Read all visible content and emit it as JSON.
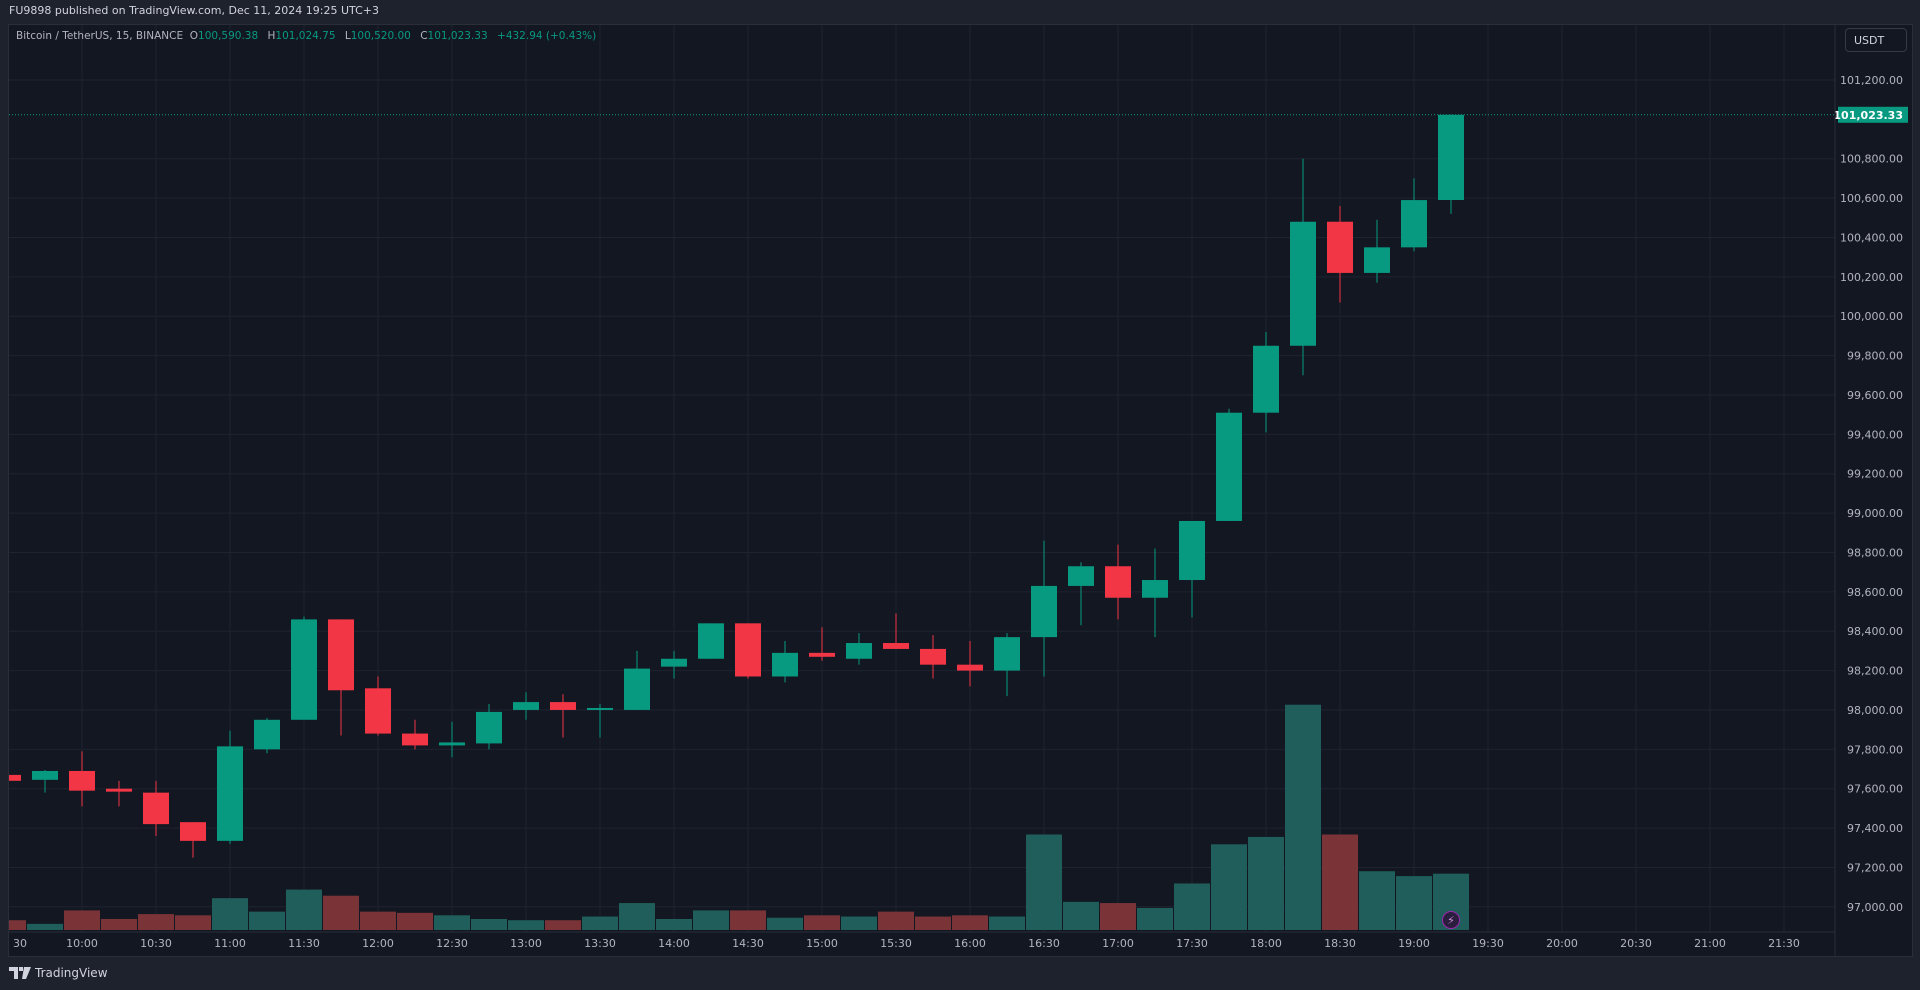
{
  "publish_line": "FU9898 published on TradingView.com, Dec 11, 2024 19:25 UTC+3",
  "legend": {
    "symbol": "Bitcoin / TetherUS, 15, BINANCE",
    "o_label": "O",
    "o": "100,590.38",
    "h_label": "H",
    "h": "101,024.75",
    "l_label": "L",
    "l": "100,520.00",
    "c_label": "C",
    "c": "101,023.33",
    "change": "+432.94 (+0.43%)"
  },
  "currency_button": "USDT",
  "footer_brand": "TradingView",
  "colors": {
    "up": "#089981",
    "down": "#f23645",
    "vol_up": "#1f5e5a",
    "vol_down": "#7a3337",
    "background": "#131722",
    "grid": "#1f2330"
  },
  "icons": {
    "lightning": "lightning-icon",
    "logo": "tradingview-logo"
  },
  "chart_data": {
    "type": "candlestick",
    "interval": "15",
    "last_price": 101023.33,
    "last_price_label": "101,023.33",
    "ylim": [
      96900,
      101400
    ],
    "price_ticks": [
      "101,200.00",
      "100,800.00",
      "100,600.00",
      "100,400.00",
      "100,200.00",
      "100,000.00",
      "99,800.00",
      "99,600.00",
      "99,400.00",
      "99,200.00",
      "99,000.00",
      "98,800.00",
      "98,600.00",
      "98,400.00",
      "98,200.00",
      "98,000.00",
      "97,800.00",
      "97,600.00",
      "97,400.00",
      "97,200.00",
      "97,000.00"
    ],
    "time_ticks": [
      "30",
      "10:00",
      "10:30",
      "11:00",
      "11:30",
      "12:00",
      "12:30",
      "13:00",
      "13:30",
      "14:00",
      "14:30",
      "15:00",
      "15:30",
      "16:00",
      "16:30",
      "17:00",
      "17:30",
      "18:00",
      "18:30",
      "19:00",
      "19:30",
      "20:00",
      "20:30",
      "21:00",
      "21:30"
    ],
    "grid": true,
    "candles": [
      {
        "t": "09:30",
        "o": 97670,
        "h": 97675,
        "l": 97640,
        "c": 97640,
        "v": 8
      },
      {
        "t": "09:45",
        "o": 97645,
        "h": 97695,
        "l": 97580,
        "c": 97690,
        "v": 5
      },
      {
        "t": "10:00",
        "o": 97690,
        "h": 97790,
        "l": 97510,
        "c": 97590,
        "v": 16
      },
      {
        "t": "10:15",
        "o": 97600,
        "h": 97640,
        "l": 97510,
        "c": 97585,
        "v": 9
      },
      {
        "t": "10:30",
        "o": 97580,
        "h": 97640,
        "l": 97360,
        "c": 97420,
        "v": 13
      },
      {
        "t": "10:45",
        "o": 97430,
        "h": 97430,
        "l": 97250,
        "c": 97335,
        "v": 12
      },
      {
        "t": "11:00",
        "o": 97335,
        "h": 97895,
        "l": 97320,
        "c": 97815,
        "v": 26
      },
      {
        "t": "11:15",
        "o": 97800,
        "h": 97960,
        "l": 97780,
        "c": 97950,
        "v": 15
      },
      {
        "t": "11:30",
        "o": 97950,
        "h": 98475,
        "l": 97950,
        "c": 98460,
        "v": 33
      },
      {
        "t": "11:45",
        "o": 98460,
        "h": 98460,
        "l": 97870,
        "c": 98100,
        "v": 28
      },
      {
        "t": "12:00",
        "o": 98110,
        "h": 98170,
        "l": 97870,
        "c": 97880,
        "v": 15
      },
      {
        "t": "12:15",
        "o": 97880,
        "h": 97950,
        "l": 97800,
        "c": 97820,
        "v": 14
      },
      {
        "t": "12:30",
        "o": 97820,
        "h": 97940,
        "l": 97760,
        "c": 97835,
        "v": 12
      },
      {
        "t": "12:45",
        "o": 97830,
        "h": 98030,
        "l": 97800,
        "c": 97990,
        "v": 9
      },
      {
        "t": "13:00",
        "o": 98000,
        "h": 98090,
        "l": 97950,
        "c": 98040,
        "v": 8
      },
      {
        "t": "13:15",
        "o": 98040,
        "h": 98080,
        "l": 97860,
        "c": 98000,
        "v": 8
      },
      {
        "t": "13:30",
        "o": 98000,
        "h": 98030,
        "l": 97860,
        "c": 98010,
        "v": 11
      },
      {
        "t": "13:45",
        "o": 98000,
        "h": 98300,
        "l": 98000,
        "c": 98210,
        "v": 22
      },
      {
        "t": "14:00",
        "o": 98220,
        "h": 98300,
        "l": 98160,
        "c": 98260,
        "v": 9
      },
      {
        "t": "14:15",
        "o": 98260,
        "h": 98440,
        "l": 98260,
        "c": 98440,
        "v": 16
      },
      {
        "t": "14:30",
        "o": 98440,
        "h": 98440,
        "l": 98160,
        "c": 98170,
        "v": 16
      },
      {
        "t": "14:45",
        "o": 98170,
        "h": 98350,
        "l": 98140,
        "c": 98290,
        "v": 10
      },
      {
        "t": "15:00",
        "o": 98290,
        "h": 98420,
        "l": 98250,
        "c": 98270,
        "v": 12
      },
      {
        "t": "15:15",
        "o": 98260,
        "h": 98390,
        "l": 98230,
        "c": 98340,
        "v": 11
      },
      {
        "t": "15:30",
        "o": 98340,
        "h": 98490,
        "l": 98310,
        "c": 98310,
        "v": 15
      },
      {
        "t": "15:45",
        "o": 98310,
        "h": 98380,
        "l": 98160,
        "c": 98230,
        "v": 11
      },
      {
        "t": "16:00",
        "o": 98230,
        "h": 98350,
        "l": 98120,
        "c": 98200,
        "v": 12
      },
      {
        "t": "16:15",
        "o": 98200,
        "h": 98390,
        "l": 98070,
        "c": 98370,
        "v": 11
      },
      {
        "t": "16:30",
        "o": 98370,
        "h": 98860,
        "l": 98170,
        "c": 98630,
        "v": 78
      },
      {
        "t": "16:45",
        "o": 98630,
        "h": 98750,
        "l": 98430,
        "c": 98730,
        "v": 23
      },
      {
        "t": "17:00",
        "o": 98730,
        "h": 98840,
        "l": 98460,
        "c": 98570,
        "v": 22
      },
      {
        "t": "17:15",
        "o": 98570,
        "h": 98820,
        "l": 98370,
        "c": 98660,
        "v": 18
      },
      {
        "t": "17:30",
        "o": 98660,
        "h": 98960,
        "l": 98470,
        "c": 98960,
        "v": 38
      },
      {
        "t": "17:45",
        "o": 98960,
        "h": 99530,
        "l": 98960,
        "c": 99510,
        "v": 70
      },
      {
        "t": "18:00",
        "o": 99510,
        "h": 99920,
        "l": 99410,
        "c": 99850,
        "v": 76
      },
      {
        "t": "18:15",
        "o": 99850,
        "h": 100800,
        "l": 99700,
        "c": 100480,
        "v": 184
      },
      {
        "t": "18:30",
        "o": 100480,
        "h": 100560,
        "l": 100070,
        "c": 100220,
        "v": 78
      },
      {
        "t": "18:45",
        "o": 100220,
        "h": 100490,
        "l": 100170,
        "c": 100350,
        "v": 48
      },
      {
        "t": "19:00",
        "o": 100350,
        "h": 100700,
        "l": 100330,
        "c": 100590,
        "v": 44
      },
      {
        "t": "19:15",
        "o": 100590.38,
        "h": 101024.75,
        "l": 100520,
        "c": 101023.33,
        "v": 46
      }
    ]
  }
}
